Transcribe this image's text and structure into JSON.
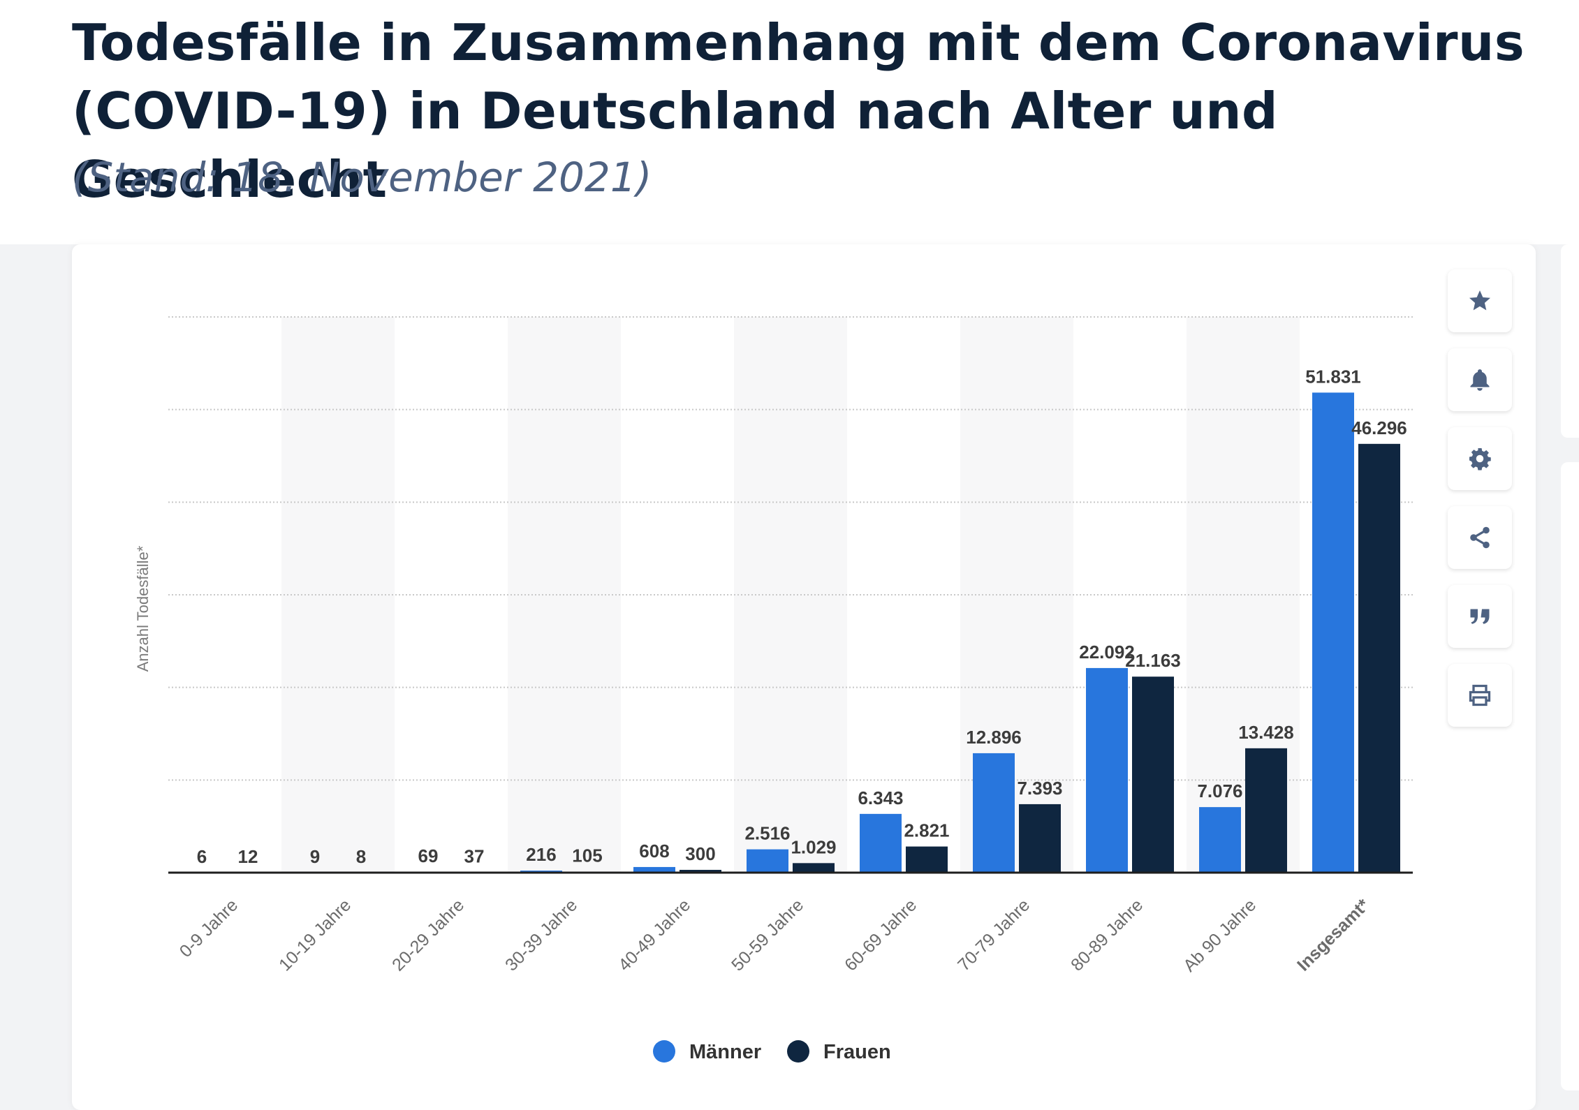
{
  "header": {
    "title": "Todesfälle in Zusammenhang mit dem Coronavirus (COVID-19) in Deutschland nach Alter und Geschlecht",
    "subtitle": "(Stand: 18. November 2021)"
  },
  "toolbar": {
    "icons": [
      "star-icon",
      "bell-icon",
      "gear-icon",
      "share-icon",
      "quote-icon",
      "print-icon"
    ]
  },
  "colors": {
    "maenner": "#2876dd",
    "frauen": "#0f2640",
    "title": "#0f2137",
    "subtitle": "#4e6282"
  },
  "chart_data": {
    "type": "bar",
    "ylabel": "Anzahl Todesfälle*",
    "ylim": [
      0,
      60000
    ],
    "grid": true,
    "legend_position": "bottom",
    "categories": [
      "0-9 Jahre",
      "10-19 Jahre",
      "20-29 Jahre",
      "30-39 Jahre",
      "40-49 Jahre",
      "50-59 Jahre",
      "60-69 Jahre",
      "70-79 Jahre",
      "80-89 Jahre",
      "Ab 90 Jahre",
      "Insgesamt*"
    ],
    "series": [
      {
        "name": "Männer",
        "values": [
          6,
          9,
          69,
          216,
          608,
          2516,
          6343,
          12896,
          22092,
          7076,
          51831
        ],
        "labels": [
          "6",
          "9",
          "69",
          "216",
          "608",
          "2.516",
          "6.343",
          "12.896",
          "22.092",
          "7.076",
          "51.831"
        ]
      },
      {
        "name": "Frauen",
        "values": [
          12,
          8,
          37,
          105,
          300,
          1029,
          2821,
          7393,
          21163,
          13428,
          46296
        ],
        "labels": [
          "12",
          "8",
          "37",
          "105",
          "300",
          "1.029",
          "2.821",
          "7.393",
          "21.163",
          "13.428",
          "46.296"
        ]
      }
    ]
  }
}
